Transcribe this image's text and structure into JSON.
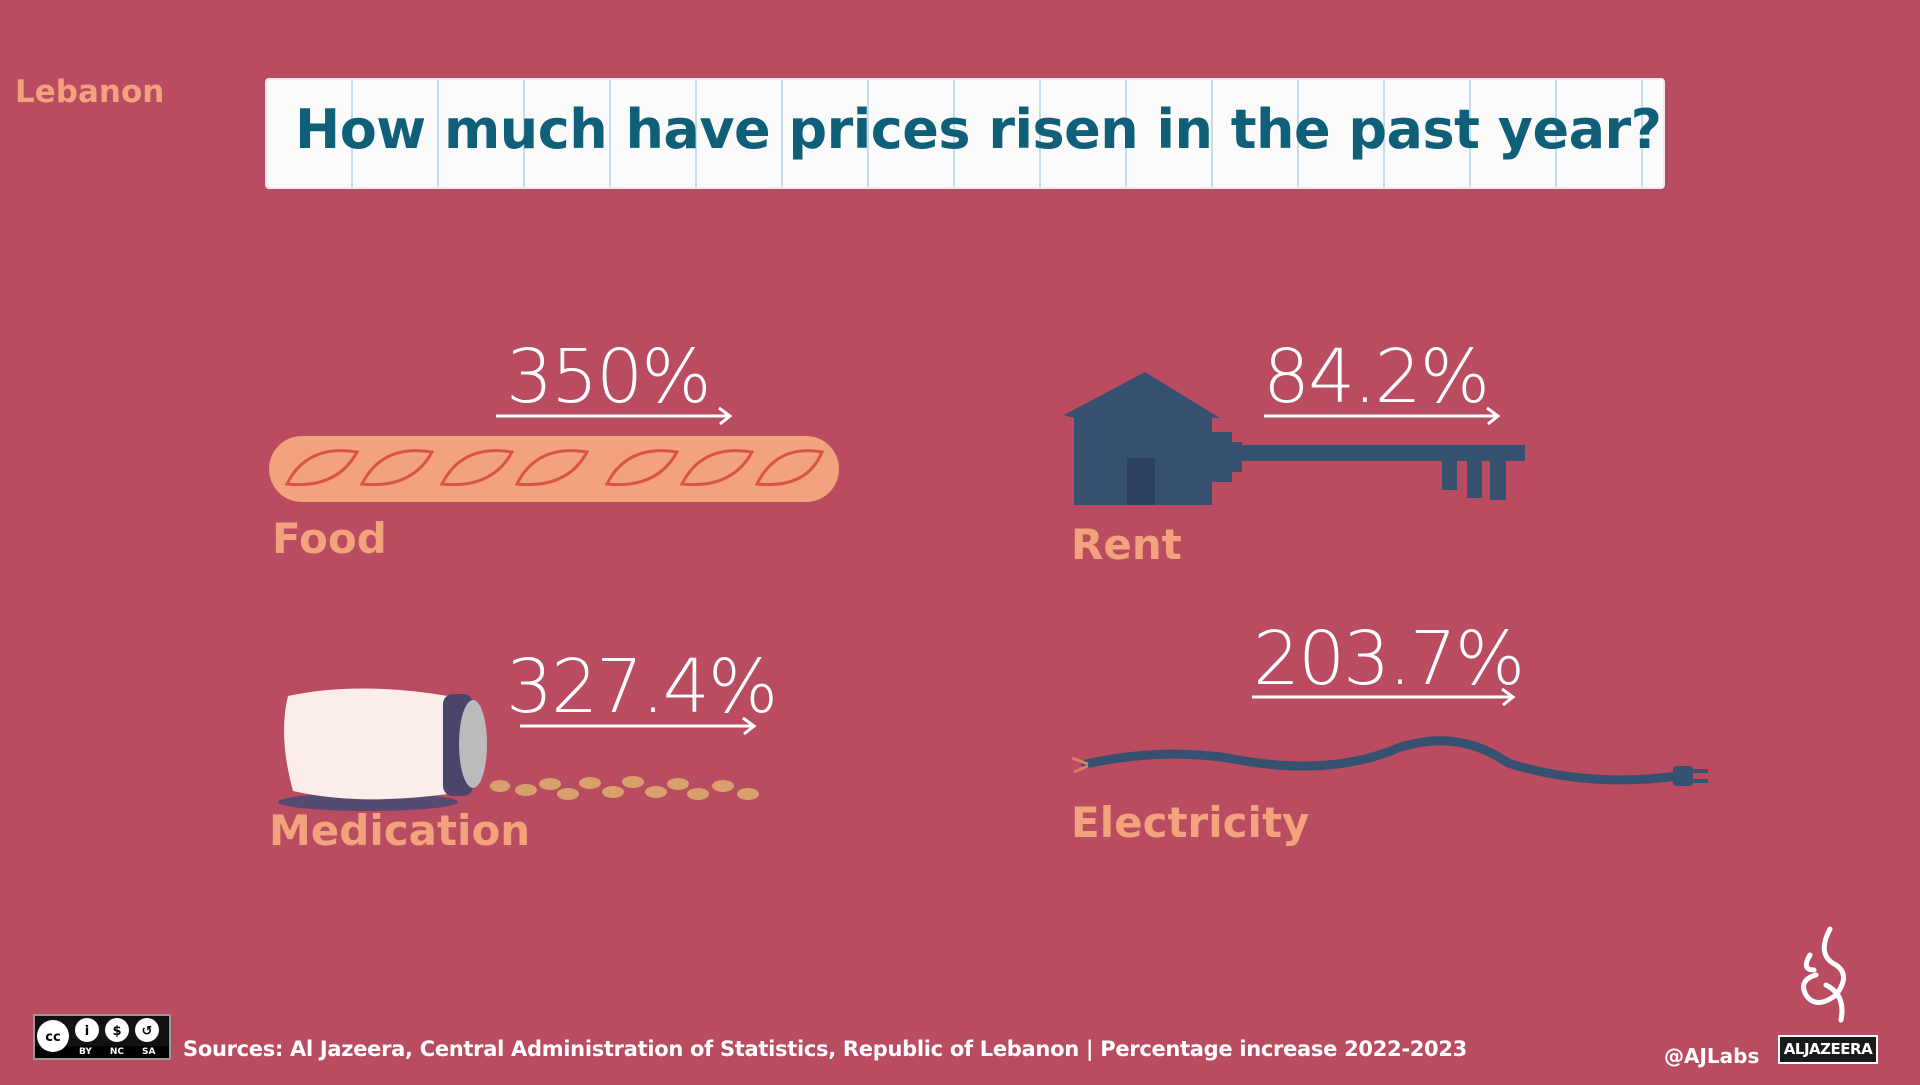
{
  "header": {
    "kicker": "Lebanon",
    "title": "How much have prices risen in the past year?"
  },
  "items": [
    {
      "label": "Food",
      "value": "350%",
      "icon": "baguette-icon"
    },
    {
      "label": "Rent",
      "value": "84.2%",
      "icon": "house-key-icon"
    },
    {
      "label": "Medication",
      "value": "327.4%",
      "icon": "pill-bottle-icon"
    },
    {
      "label": "Electricity",
      "value": "203.7%",
      "icon": "power-cord-icon"
    }
  ],
  "footer": {
    "sources": "Sources: Al Jazeera, Central Administration of Statistics, Republic of Lebanon | Percentage increase 2022-2023",
    "license": "CC BY NC SA",
    "license_parts": [
      "BY",
      "NC",
      "SA"
    ],
    "handle": "@AJLabs",
    "brand": "ALJAZEERA"
  },
  "colors": {
    "background": "#ba4c61",
    "accent": "#f2a27c",
    "title": "#0f5f78",
    "icon": "#36516f"
  }
}
